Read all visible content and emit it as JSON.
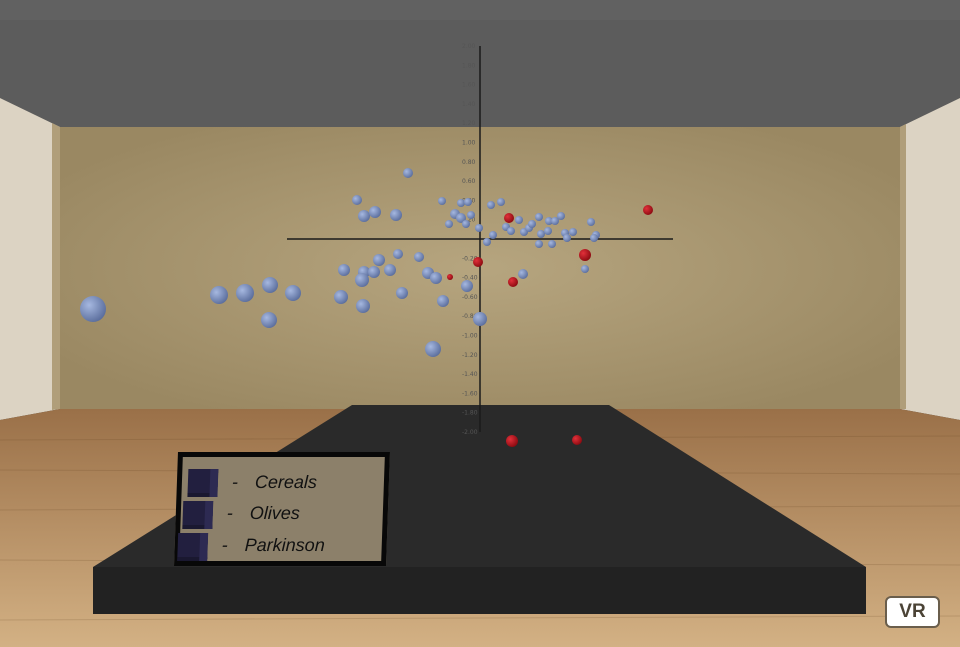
{
  "ui": {
    "vr_button_label": "VR"
  },
  "legend": {
    "items": [
      {
        "separator": "-",
        "label": "Cereals"
      },
      {
        "separator": "-",
        "label": "Olives"
      },
      {
        "separator": "-",
        "label": "Parkinson"
      }
    ]
  },
  "colors": {
    "ceiling": "#5c5c5c",
    "back_wall": "#a89770",
    "side_wall": "#dcd3c3",
    "floor": "#b48a5c",
    "platform": "#262626",
    "point_blue": "#7f94c8",
    "point_red": "#c0141a",
    "legend_bg": "#8c806a",
    "legend_swatch": "#221f3f"
  },
  "axis": {
    "y_ticks": [
      "2.00",
      "1.80",
      "1.60",
      "1.40",
      "1.20",
      "1.00",
      "0.80",
      "0.60",
      "0.40",
      "0.20",
      "-0.20",
      "-0.40",
      "-0.60",
      "-0.80",
      "-1.00",
      "-1.20",
      "-1.40",
      "-1.60",
      "-1.80",
      "-2.00"
    ]
  }
}
